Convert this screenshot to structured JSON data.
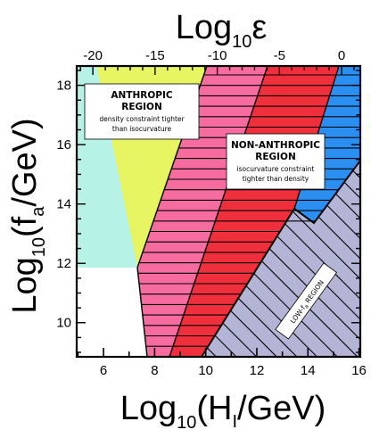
{
  "axes": {
    "top_title_base": "Log",
    "top_title_sub": "10",
    "top_title_sym": "ε",
    "left_title_base": "Log",
    "left_title_sub": "10",
    "left_title_mid": "(f",
    "left_title_sub2": "a",
    "left_title_end": "/GeV)",
    "bottom_title_base": "Log",
    "bottom_title_sub": "10",
    "bottom_title_mid": "(H",
    "bottom_title_sub2": "I",
    "bottom_title_end": "/GeV)",
    "top_ticks": [
      "-20",
      "-15",
      "-10",
      "-5",
      "0"
    ],
    "left_ticks": [
      "10",
      "12",
      "14",
      "16",
      "18"
    ],
    "bottom_ticks": [
      "6",
      "8",
      "10",
      "12",
      "14",
      "16"
    ]
  },
  "regions": {
    "anthropic": {
      "title_line1": "ANTHROPIC",
      "title_line2": "REGION",
      "note_line1": "density constraint tighter",
      "note_line2": "than isocurvature"
    },
    "non_anthropic": {
      "title_line1": "NON-ANTHROPIC",
      "title_line2": "REGION",
      "note_line1": "isocurvature constraint",
      "note_line2": "tighter than density"
    },
    "low_fa": {
      "label_pre": "LOW-f",
      "label_sub": "a",
      "label_post": " REGION"
    }
  },
  "colors": {
    "cyan": "#b6f3e6",
    "yellow": "#e8f562",
    "pink": "#f76c9e",
    "red": "#ef2f3b",
    "blue": "#2b8ff2",
    "lavender": "#b4b4d6"
  }
}
